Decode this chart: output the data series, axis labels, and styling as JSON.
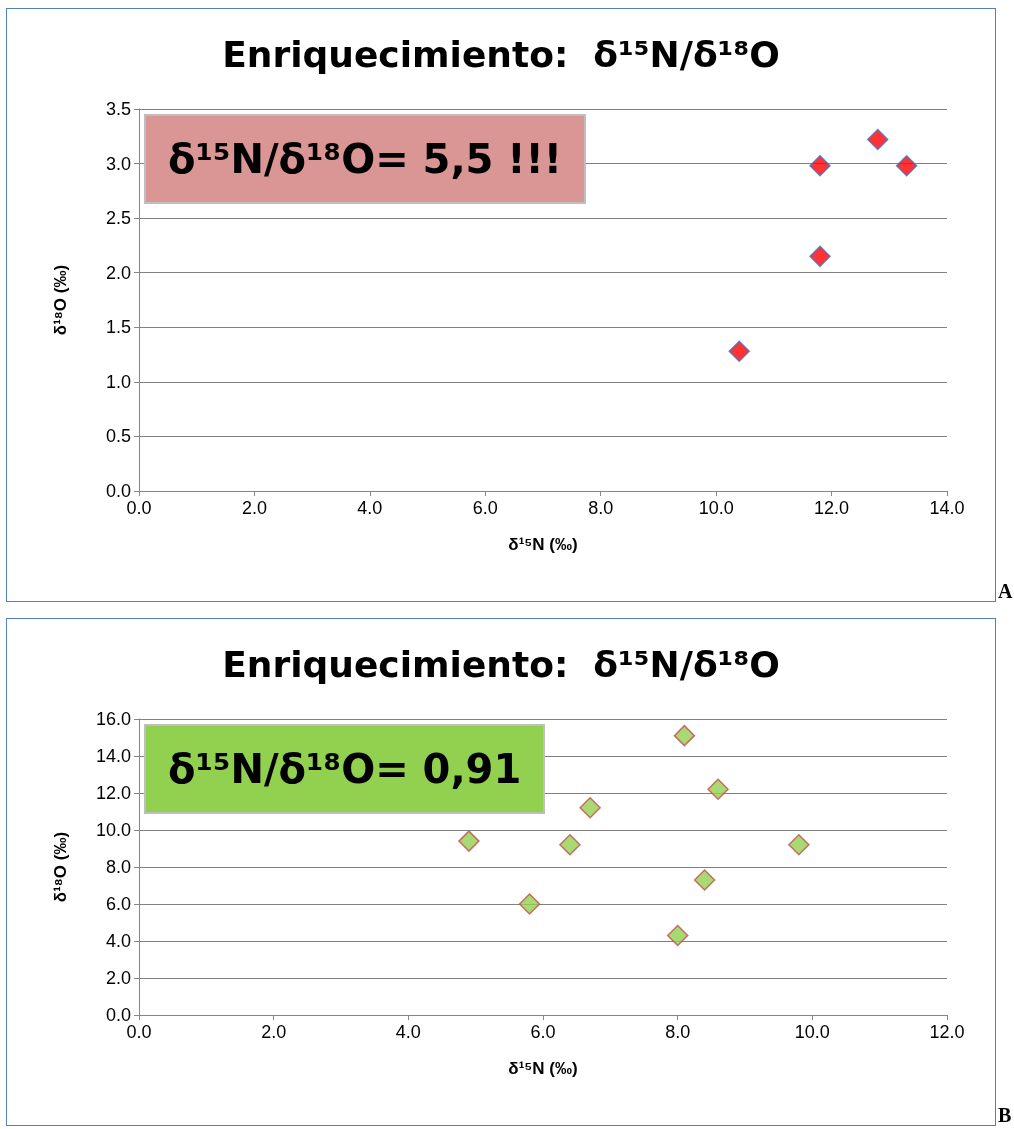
{
  "chart_data": [
    {
      "type": "scatter",
      "title": "Enriquecimiento:  δ¹⁵N/δ¹⁸O",
      "xlabel": "δ¹⁵N (‰)",
      "ylabel": "δ¹⁸O (‰)",
      "x": [
        10.4,
        11.8,
        11.8,
        12.8,
        13.3
      ],
      "series": [
        {
          "color": "#ff0000",
          "values": [
            1.28,
            2.15,
            2.98,
            3.22,
            2.98
          ]
        }
      ],
      "xlim": [
        0,
        14
      ],
      "xticks": [
        {
          "value": 0,
          "label": "0.0"
        },
        {
          "value": 2,
          "label": "2.0"
        },
        {
          "value": 4,
          "label": "4.0"
        },
        {
          "value": 6,
          "label": "6.0"
        },
        {
          "value": 8,
          "label": "8.0"
        },
        {
          "value": 10,
          "label": "10.0"
        },
        {
          "value": 12,
          "label": "12.0"
        },
        {
          "value": 14,
          "label": "14.0"
        }
      ],
      "ylim": [
        0,
        3.5
      ],
      "yticks": [
        {
          "value": 0,
          "label": "0.0"
        },
        0.5,
        {
          "value": 1,
          "label": "1.0"
        },
        1.5,
        {
          "value": 2,
          "label": "2.0"
        },
        2.5,
        {
          "value": 3,
          "label": "3.0"
        },
        3.5
      ],
      "grid": "y",
      "marker": "diamond",
      "annotations": [
        "δ¹⁵N/δ¹⁸O= 5,5 !!!",
        "A"
      ]
    },
    {
      "type": "scatter",
      "title": "Enriquecimiento:  δ¹⁵N/δ¹⁸O",
      "xlabel": "δ¹⁵N (‰)",
      "ylabel": "δ¹⁸O (‰)",
      "x": [
        4.9,
        5.8,
        6.4,
        6.7,
        8.0,
        8.1,
        8.6,
        8.4,
        9.8
      ],
      "series": [
        {
          "color": "#92d050",
          "values": [
            9.4,
            6.0,
            9.2,
            11.2,
            4.3,
            15.1,
            12.2,
            7.3,
            9.2
          ]
        }
      ],
      "xlim": [
        0,
        12
      ],
      "xticks": [
        {
          "value": 0,
          "label": "0.0"
        },
        {
          "value": 2,
          "label": "2.0"
        },
        {
          "value": 4,
          "label": "4.0"
        },
        {
          "value": 6,
          "label": "6.0"
        },
        {
          "value": 8,
          "label": "8.0"
        },
        {
          "value": 10,
          "label": "10.0"
        },
        {
          "value": 12,
          "label": "12.0"
        }
      ],
      "ylim": [
        0,
        16
      ],
      "yticks": [
        {
          "value": 0,
          "label": "0.0"
        },
        {
          "value": 2,
          "label": "2.0"
        },
        {
          "value": 4,
          "label": "4.0"
        },
        {
          "value": 6,
          "label": "6.0"
        },
        {
          "value": 8,
          "label": "8.0"
        },
        {
          "value": 10,
          "label": "10.0"
        },
        {
          "value": 12,
          "label": "12.0"
        },
        {
          "value": 14,
          "label": "14.0"
        },
        {
          "value": 16,
          "label": "16.0"
        }
      ],
      "grid": "y",
      "marker": "diamond",
      "annotations": [
        "δ¹⁵N/δ¹⁸O= 0,91",
        "B"
      ]
    }
  ]
}
